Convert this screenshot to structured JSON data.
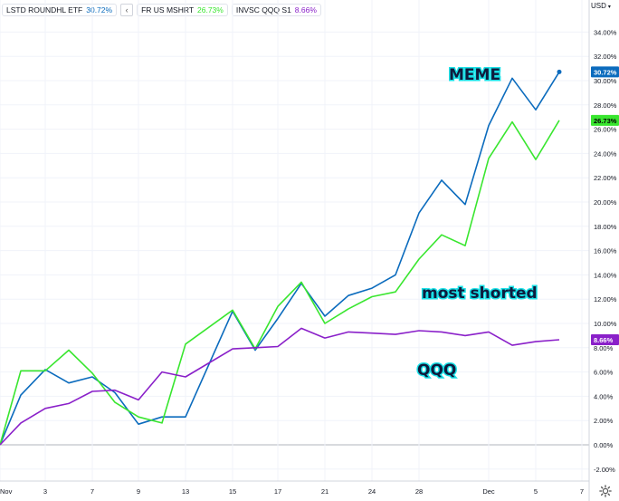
{
  "legend": {
    "items": [
      {
        "label": "LSTD ROUNDHL ETF",
        "value": "30.72%",
        "color": "#0b6bbd"
      },
      {
        "label": "FR US MSHRT",
        "value": "26.73%",
        "color": "#39e62f"
      },
      {
        "label": "INVSC QQQ S1",
        "value": "8.66%",
        "color": "#8a20c9"
      }
    ],
    "collapse_symbol": "‹"
  },
  "currency": {
    "label": "USD",
    "caret": "▾"
  },
  "settings_icon": "gear-icon",
  "chart_data": {
    "type": "line",
    "x": [
      "Nov 1",
      "Nov 2",
      "Nov 3",
      "Nov 5",
      "Nov 7",
      "Nov 8",
      "Nov 9",
      "Nov 11",
      "Nov 13",
      "Nov 15",
      "Nov 16",
      "Nov 17",
      "Nov 19",
      "Nov 20",
      "Nov 22",
      "Nov 24",
      "Nov 26",
      "Nov 28",
      "Nov 29",
      "Dec 1",
      "Dec 2",
      "Dec 3",
      "Dec 5",
      "Dec 6"
    ],
    "x_ticks": [
      "Nov",
      "3",
      "7",
      "9",
      "13",
      "15",
      "17",
      "21",
      "24",
      "28",
      "Dec",
      "5",
      "7"
    ],
    "series": [
      {
        "name": "LSTD ROUNDHL ETF",
        "color": "#0b6bbd",
        "values": [
          0.0,
          4.1,
          6.2,
          5.1,
          5.6,
          4.3,
          1.7,
          2.3,
          2.3,
          11.0,
          7.8,
          10.4,
          13.3,
          10.6,
          12.3,
          12.9,
          14.0,
          19.1,
          21.8,
          19.8,
          26.3,
          30.2,
          27.6,
          30.72
        ]
      },
      {
        "name": "FR US MSHRT",
        "color": "#39e62f",
        "values": [
          0.0,
          6.1,
          6.1,
          7.8,
          5.9,
          3.5,
          2.3,
          1.8,
          8.3,
          11.1,
          7.9,
          11.4,
          13.4,
          10.0,
          11.2,
          12.2,
          12.6,
          15.3,
          17.3,
          16.4,
          23.6,
          26.6,
          23.5,
          26.73
        ]
      },
      {
        "name": "INVSC QQQ S1",
        "color": "#8a20c9",
        "values": [
          0.0,
          1.8,
          3.0,
          3.4,
          4.4,
          4.5,
          3.7,
          6.0,
          5.6,
          7.9,
          8.0,
          8.1,
          9.6,
          8.8,
          9.3,
          9.2,
          9.1,
          9.4,
          9.3,
          9.0,
          9.3,
          8.2,
          8.5,
          8.66
        ]
      }
    ],
    "y_ticks": [
      "34.00%",
      "32.00%",
      "30.00%",
      "28.00%",
      "26.00%",
      "24.00%",
      "22.00%",
      "20.00%",
      "18.00%",
      "16.00%",
      "14.00%",
      "12.00%",
      "10.00%",
      "8.00%",
      "6.00%",
      "4.00%",
      "2.00%",
      "0.00%",
      "-2.00%"
    ],
    "ylim": [
      -3.0,
      36.0
    ],
    "last_value_labels": [
      "30.72%",
      "26.73%",
      "8.66%"
    ],
    "annotations": [
      "MEME",
      "most shorted",
      "QQQ"
    ],
    "grid": true,
    "legend_position": "top-left"
  }
}
